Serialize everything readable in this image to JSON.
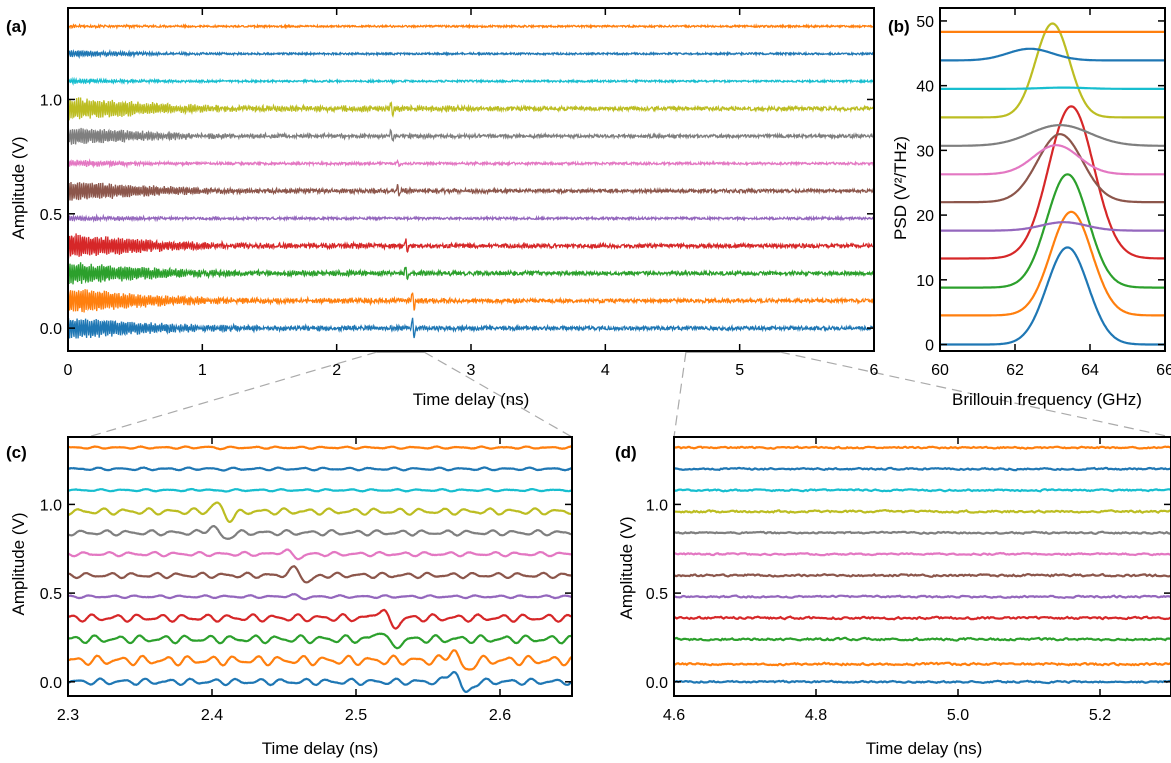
{
  "chart_data": [
    {
      "id": "a",
      "panel_label": "(a)",
      "type": "line",
      "xlabel": "Time delay (ns)",
      "ylabel": "Amplitude (V)",
      "xlim": [
        0,
        6
      ],
      "ylim": [
        -0.1,
        1.4
      ],
      "x_ticks": [
        0,
        1,
        2,
        3,
        4,
        5,
        6
      ],
      "y_ticks": [
        0.0,
        0.5,
        1.0
      ],
      "x_tick_labels": [
        "0",
        "1",
        "2",
        "3",
        "4",
        "5",
        "6"
      ],
      "y_tick_labels": [
        "0.0",
        "0.5",
        "1.0"
      ],
      "series": [
        {
          "offset": 0.0,
          "color": "#1f77b4",
          "osc_amp": 0.045,
          "decay": 1.2,
          "pulse_x": 2.57,
          "pulse_amp": 0.07,
          "noise": 0.008
        },
        {
          "offset": 0.12,
          "color": "#ff7f0e",
          "osc_amp": 0.05,
          "decay": 1.2,
          "pulse_x": 2.57,
          "pulse_amp": 0.06,
          "noise": 0.008
        },
        {
          "offset": 0.24,
          "color": "#2ca02c",
          "osc_amp": 0.045,
          "decay": 1.2,
          "pulse_x": 2.52,
          "pulse_amp": 0.05,
          "noise": 0.008
        },
        {
          "offset": 0.36,
          "color": "#d62728",
          "osc_amp": 0.05,
          "decay": 1.1,
          "pulse_x": 2.52,
          "pulse_amp": 0.05,
          "noise": 0.008
        },
        {
          "offset": 0.48,
          "color": "#9467bd",
          "osc_amp": 0.01,
          "decay": 1.0,
          "pulse_x": 2.44,
          "pulse_amp": 0.01,
          "noise": 0.005
        },
        {
          "offset": 0.6,
          "color": "#8c564b",
          "osc_amp": 0.04,
          "decay": 1.3,
          "pulse_x": 2.46,
          "pulse_amp": 0.04,
          "noise": 0.007
        },
        {
          "offset": 0.72,
          "color": "#e377c2",
          "osc_amp": 0.012,
          "decay": 1.0,
          "pulse_x": 2.46,
          "pulse_amp": 0.02,
          "noise": 0.005
        },
        {
          "offset": 0.84,
          "color": "#7f7f7f",
          "osc_amp": 0.035,
          "decay": 1.2,
          "pulse_x": 2.41,
          "pulse_amp": 0.04,
          "noise": 0.007
        },
        {
          "offset": 0.96,
          "color": "#bcbd22",
          "osc_amp": 0.045,
          "decay": 1.4,
          "pulse_x": 2.41,
          "pulse_amp": 0.05,
          "noise": 0.008
        },
        {
          "offset": 1.08,
          "color": "#17becf",
          "osc_amp": 0.008,
          "decay": 1.0,
          "pulse_x": 2.41,
          "pulse_amp": 0.005,
          "noise": 0.004
        },
        {
          "offset": 1.2,
          "color": "#1f77b4",
          "osc_amp": 0.012,
          "decay": 0.9,
          "pulse_x": 2.41,
          "pulse_amp": 0.005,
          "noise": 0.004
        },
        {
          "offset": 1.32,
          "color": "#ff7f0e",
          "osc_amp": 0.004,
          "decay": 1.0,
          "pulse_x": 2.41,
          "pulse_amp": 0.004,
          "noise": 0.004
        }
      ]
    },
    {
      "id": "b",
      "panel_label": "(b)",
      "type": "line",
      "xlabel": "Brillouin frequency (GHz)",
      "ylabel": "PSD (V²/THz)",
      "xlim": [
        60,
        66
      ],
      "ylim": [
        -1,
        52
      ],
      "x_ticks": [
        60,
        62,
        64,
        66
      ],
      "y_ticks": [
        0,
        10,
        20,
        30,
        40,
        50
      ],
      "x_tick_labels": [
        "60",
        "62",
        "64",
        "66"
      ],
      "y_tick_labels": [
        "0",
        "10",
        "20",
        "30",
        "40",
        "50"
      ],
      "series": [
        {
          "offset": 0.0,
          "color": "#1f77b4",
          "center": 63.4,
          "height": 15.0,
          "width": 0.55
        },
        {
          "offset": 4.5,
          "color": "#ff7f0e",
          "center": 63.5,
          "height": 16.0,
          "width": 0.55
        },
        {
          "offset": 8.8,
          "color": "#2ca02c",
          "center": 63.4,
          "height": 17.5,
          "width": 0.55
        },
        {
          "offset": 13.3,
          "color": "#d62728",
          "center": 63.5,
          "height": 23.5,
          "width": 0.6
        },
        {
          "offset": 17.6,
          "color": "#9467bd",
          "center": 63.3,
          "height": 1.3,
          "width": 0.6
        },
        {
          "offset": 22.0,
          "color": "#8c564b",
          "center": 63.2,
          "height": 10.5,
          "width": 0.6
        },
        {
          "offset": 26.3,
          "color": "#e377c2",
          "center": 63.1,
          "height": 4.5,
          "width": 0.6
        },
        {
          "offset": 30.7,
          "color": "#7f7f7f",
          "center": 63.2,
          "height": 3.2,
          "width": 0.8
        },
        {
          "offset": 35.1,
          "color": "#bcbd22",
          "center": 63.0,
          "height": 14.5,
          "width": 0.45
        },
        {
          "offset": 39.5,
          "color": "#17becf",
          "center": 63.3,
          "height": 0.2,
          "width": 0.6
        },
        {
          "offset": 43.9,
          "color": "#1f77b4",
          "center": 62.4,
          "height": 1.8,
          "width": 0.6
        },
        {
          "offset": 48.3,
          "color": "#ff7f0e",
          "center": 63.0,
          "height": 0.0,
          "width": 0.6
        }
      ]
    },
    {
      "id": "c",
      "panel_label": "(c)",
      "type": "line",
      "xlabel": "Time delay (ns)",
      "ylabel": "Amplitude (V)",
      "xlim": [
        2.3,
        2.65
      ],
      "ylim": [
        -0.08,
        1.38
      ],
      "x_ticks": [
        2.3,
        2.4,
        2.5,
        2.6
      ],
      "y_ticks": [
        0.0,
        0.5,
        1.0
      ],
      "x_tick_labels": [
        "2.3",
        "2.4",
        "2.5",
        "2.6"
      ],
      "y_tick_labels": [
        "0.0",
        "0.5",
        "1.0"
      ],
      "series": [
        {
          "offset": 0.0,
          "color": "#1f77b4",
          "osc_amp": 0.012,
          "pulse_x": 2.572,
          "pulse_amp": 0.065
        },
        {
          "offset": 0.12,
          "color": "#ff7f0e",
          "osc_amp": 0.018,
          "pulse_x": 2.572,
          "pulse_amp": 0.06
        },
        {
          "offset": 0.24,
          "color": "#2ca02c",
          "osc_amp": 0.015,
          "pulse_x": 2.522,
          "pulse_amp": 0.05
        },
        {
          "offset": 0.36,
          "color": "#d62728",
          "osc_amp": 0.014,
          "pulse_x": 2.522,
          "pulse_amp": 0.05
        },
        {
          "offset": 0.48,
          "color": "#9467bd",
          "osc_amp": 0.005,
          "pulse_x": 2.46,
          "pulse_amp": 0.008
        },
        {
          "offset": 0.6,
          "color": "#8c564b",
          "osc_amp": 0.01,
          "pulse_x": 2.462,
          "pulse_amp": 0.04
        },
        {
          "offset": 0.72,
          "color": "#e377c2",
          "osc_amp": 0.008,
          "pulse_x": 2.455,
          "pulse_amp": 0.02
        },
        {
          "offset": 0.84,
          "color": "#7f7f7f",
          "osc_amp": 0.01,
          "pulse_x": 2.405,
          "pulse_amp": 0.035
        },
        {
          "offset": 0.96,
          "color": "#bcbd22",
          "osc_amp": 0.012,
          "pulse_x": 2.408,
          "pulse_amp": 0.045
        },
        {
          "offset": 1.08,
          "color": "#17becf",
          "osc_amp": 0.004,
          "pulse_x": 2.4,
          "pulse_amp": 0.004
        },
        {
          "offset": 1.2,
          "color": "#1f77b4",
          "osc_amp": 0.005,
          "pulse_x": 2.4,
          "pulse_amp": 0.003
        },
        {
          "offset": 1.32,
          "color": "#ff7f0e",
          "osc_amp": 0.004,
          "pulse_x": 2.4,
          "pulse_amp": 0.003
        }
      ]
    },
    {
      "id": "d",
      "panel_label": "(d)",
      "type": "line",
      "xlabel": "Time delay (ns)",
      "ylabel": "Amplitude (V)",
      "xlim": [
        4.6,
        5.3
      ],
      "ylim": [
        -0.08,
        1.38
      ],
      "x_ticks": [
        4.6,
        4.8,
        5.0,
        5.2
      ],
      "y_ticks": [
        0.0,
        0.5,
        1.0
      ],
      "x_tick_labels": [
        "4.6",
        "4.8",
        "5.0",
        "5.2"
      ],
      "y_tick_labels": [
        "0.0",
        "0.5",
        "1.0"
      ],
      "series": [
        {
          "offset": 0.0,
          "color": "#1f77b4",
          "noise": 0.004
        },
        {
          "offset": 0.1,
          "color": "#ff7f0e",
          "noise": 0.005
        },
        {
          "offset": 0.24,
          "color": "#2ca02c",
          "noise": 0.005
        },
        {
          "offset": 0.36,
          "color": "#d62728",
          "noise": 0.005
        },
        {
          "offset": 0.48,
          "color": "#9467bd",
          "noise": 0.004
        },
        {
          "offset": 0.6,
          "color": "#8c564b",
          "noise": 0.005
        },
        {
          "offset": 0.72,
          "color": "#e377c2",
          "noise": 0.004
        },
        {
          "offset": 0.84,
          "color": "#7f7f7f",
          "noise": 0.004
        },
        {
          "offset": 0.96,
          "color": "#bcbd22",
          "noise": 0.005
        },
        {
          "offset": 1.08,
          "color": "#17becf",
          "noise": 0.004
        },
        {
          "offset": 1.2,
          "color": "#1f77b4",
          "noise": 0.004
        },
        {
          "offset": 1.32,
          "color": "#ff7f0e",
          "noise": 0.004
        }
      ]
    }
  ]
}
